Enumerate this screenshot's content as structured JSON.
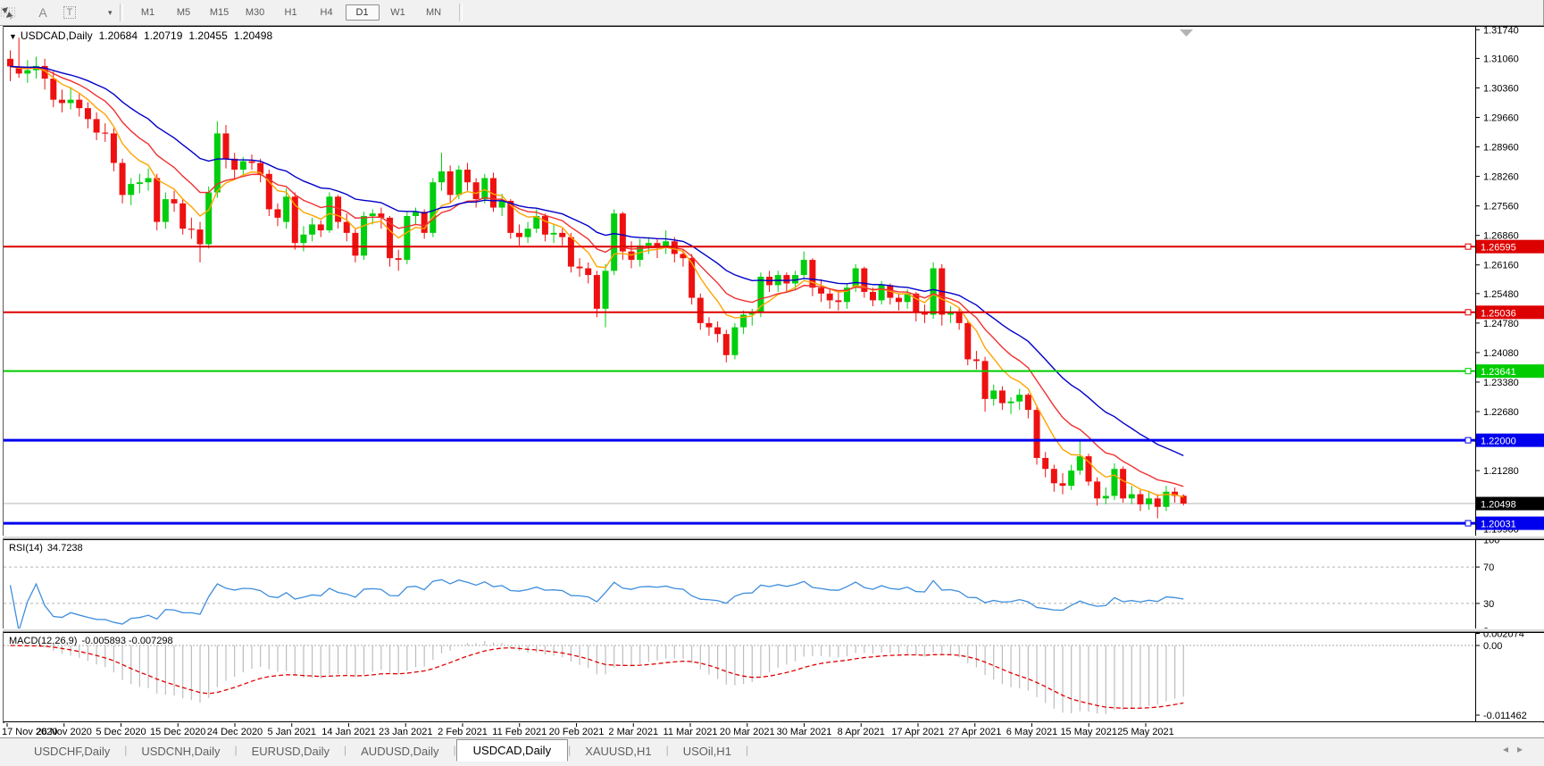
{
  "toolbar": {
    "icons": [
      {
        "name": "indicator-list-grid-icon"
      },
      {
        "name": "font-a-icon",
        "glyph": "A"
      },
      {
        "name": "text-label-icon",
        "glyph": "T"
      },
      {
        "name": "cursor-arrows-icon"
      },
      {
        "name": "dropdown-caret-icon",
        "glyph": "▾"
      }
    ],
    "timeframes": [
      "M1",
      "M5",
      "M15",
      "M30",
      "H1",
      "H4",
      "D1",
      "W1",
      "MN"
    ],
    "active_timeframe": "D1"
  },
  "chart_header": {
    "collapse_icon": "▼",
    "title": "USDCAD,Daily",
    "quote": {
      "open": "1.20684",
      "high": "1.20719",
      "low": "1.20455",
      "close": "1.20498"
    }
  },
  "price_axis": {
    "ticks": [
      "1.31740",
      "1.31060",
      "1.30360",
      "1.29660",
      "1.28960",
      "1.28260",
      "1.27560",
      "1.26860",
      "1.26160",
      "1.25480",
      "1.24780",
      "1.24080",
      "1.23380",
      "1.22680",
      "1.21280",
      "1.20580",
      "1.19900"
    ]
  },
  "chart_data": {
    "type": "candlestick",
    "symbol": "USDCAD",
    "period": "Daily",
    "axis_range": {
      "top_price": 1.3181,
      "bottom_price": 1.1974
    },
    "candle_colors": {
      "up": "#00CE0E",
      "down": "#EE1111"
    },
    "candles": [
      [
        1.3105,
        1.3125,
        1.3052,
        1.3087
      ],
      [
        1.3087,
        1.3155,
        1.306,
        1.307
      ],
      [
        1.307,
        1.3102,
        1.3048,
        1.3078
      ],
      [
        1.3078,
        1.311,
        1.3058,
        1.3088
      ],
      [
        1.3088,
        1.3105,
        1.3032,
        1.3058
      ],
      [
        1.3058,
        1.3075,
        1.299,
        1.3008
      ],
      [
        1.3008,
        1.3032,
        1.2978,
        1.3
      ],
      [
        1.3,
        1.3038,
        1.2985,
        1.3008
      ],
      [
        1.3008,
        1.3022,
        1.2968,
        1.2988
      ],
      [
        1.2988,
        1.3002,
        1.294,
        1.2962
      ],
      [
        1.2962,
        1.2978,
        1.2912,
        1.293
      ],
      [
        1.293,
        1.2952,
        1.2908,
        1.2928
      ],
      [
        1.2928,
        1.294,
        1.2838,
        1.2858
      ],
      [
        1.2858,
        1.2868,
        1.2762,
        1.2782
      ],
      [
        1.2782,
        1.2822,
        1.2758,
        1.2808
      ],
      [
        1.2808,
        1.2832,
        1.2786,
        1.2812
      ],
      [
        1.2812,
        1.2845,
        1.2792,
        1.2822
      ],
      [
        1.2822,
        1.2832,
        1.2698,
        1.2718
      ],
      [
        1.2718,
        1.2788,
        1.2702,
        1.2772
      ],
      [
        1.2772,
        1.2792,
        1.2742,
        1.2762
      ],
      [
        1.2762,
        1.2772,
        1.2688,
        1.2702
      ],
      [
        1.2702,
        1.2728,
        1.2678,
        1.27
      ],
      [
        1.27,
        1.2718,
        1.2622,
        1.2665
      ],
      [
        1.2665,
        1.2802,
        1.2655,
        1.2788
      ],
      [
        1.2788,
        1.2957,
        1.2775,
        1.2928
      ],
      [
        1.2928,
        1.2948,
        1.2845,
        1.2868
      ],
      [
        1.2868,
        1.2882,
        1.2818,
        1.2842
      ],
      [
        1.2842,
        1.2872,
        1.2828,
        1.2862
      ],
      [
        1.2862,
        1.2878,
        1.2842,
        1.2858
      ],
      [
        1.2858,
        1.2868,
        1.2812,
        1.2832
      ],
      [
        1.2832,
        1.2842,
        1.2732,
        1.2748
      ],
      [
        1.2748,
        1.2762,
        1.2708,
        1.2728
      ],
      [
        1.2718,
        1.2798,
        1.2702,
        1.2778
      ],
      [
        1.2778,
        1.2788,
        1.2652,
        1.2668
      ],
      [
        1.2668,
        1.2708,
        1.2648,
        1.2688
      ],
      [
        1.2688,
        1.2728,
        1.2672,
        1.2712
      ],
      [
        1.2712,
        1.2722,
        1.2682,
        1.2698
      ],
      [
        1.2698,
        1.2788,
        1.2692,
        1.2778
      ],
      [
        1.2778,
        1.2782,
        1.2702,
        1.2718
      ],
      [
        1.2718,
        1.2738,
        1.2672,
        1.2692
      ],
      [
        1.2692,
        1.2702,
        1.2622,
        1.2638
      ],
      [
        1.2638,
        1.2742,
        1.2628,
        1.2732
      ],
      [
        1.2732,
        1.2748,
        1.2712,
        1.2738
      ],
      [
        1.2738,
        1.2752,
        1.2702,
        1.2728
      ],
      [
        1.2728,
        1.2732,
        1.2612,
        1.2632
      ],
      [
        1.2632,
        1.2652,
        1.2602,
        1.2628
      ],
      [
        1.2628,
        1.2742,
        1.2618,
        1.2732
      ],
      [
        1.2732,
        1.2752,
        1.2712,
        1.2742
      ],
      [
        1.2742,
        1.2748,
        1.2678,
        1.2692
      ],
      [
        1.2692,
        1.2822,
        1.2682,
        1.2812
      ],
      [
        1.2812,
        1.2882,
        1.2792,
        1.2838
      ],
      [
        1.2838,
        1.2852,
        1.2762,
        1.2782
      ],
      [
        1.2782,
        1.2852,
        1.2772,
        1.2842
      ],
      [
        1.2842,
        1.2858,
        1.2792,
        1.2812
      ],
      [
        1.2812,
        1.2822,
        1.2752,
        1.2772
      ],
      [
        1.2772,
        1.2832,
        1.2762,
        1.2822
      ],
      [
        1.2822,
        1.2835,
        1.2742,
        1.2752
      ],
      [
        1.2752,
        1.2785,
        1.2732,
        1.2768
      ],
      [
        1.2768,
        1.2772,
        1.2678,
        1.2692
      ],
      [
        1.2692,
        1.2712,
        1.2662,
        1.2682
      ],
      [
        1.2682,
        1.2718,
        1.2668,
        1.2702
      ],
      [
        1.2702,
        1.2748,
        1.2692,
        1.2732
      ],
      [
        1.2732,
        1.2738,
        1.2672,
        1.2688
      ],
      [
        1.2688,
        1.2712,
        1.2668,
        1.2692
      ],
      [
        1.2692,
        1.2702,
        1.2662,
        1.2682
      ],
      [
        1.2682,
        1.2692,
        1.2598,
        1.2612
      ],
      [
        1.2612,
        1.2632,
        1.2588,
        1.2608
      ],
      [
        1.2608,
        1.2622,
        1.2572,
        1.2592
      ],
      [
        1.2592,
        1.2602,
        1.2492,
        1.2512
      ],
      [
        1.2512,
        1.2618,
        1.2468,
        1.2602
      ],
      [
        1.2602,
        1.2748,
        1.2592,
        1.2738
      ],
      [
        1.2738,
        1.2742,
        1.2628,
        1.2648
      ],
      [
        1.2648,
        1.2672,
        1.2608,
        1.2628
      ],
      [
        1.2628,
        1.2678,
        1.2612,
        1.2662
      ],
      [
        1.2662,
        1.2682,
        1.2642,
        1.2668
      ],
      [
        1.2668,
        1.2678,
        1.2632,
        1.2658
      ],
      [
        1.2658,
        1.2698,
        1.2642,
        1.2672
      ],
      [
        1.2672,
        1.2682,
        1.2622,
        1.2642
      ],
      [
        1.2642,
        1.2652,
        1.2612,
        1.2632
      ],
      [
        1.2632,
        1.2642,
        1.2522,
        1.2538
      ],
      [
        1.2538,
        1.2548,
        1.2462,
        1.2478
      ],
      [
        1.2478,
        1.2492,
        1.2448,
        1.2468
      ],
      [
        1.2468,
        1.2482,
        1.2432,
        1.2452
      ],
      [
        1.2452,
        1.2462,
        1.2385,
        1.2402
      ],
      [
        1.2402,
        1.2478,
        1.2392,
        1.2468
      ],
      [
        1.2468,
        1.2508,
        1.2452,
        1.2498
      ],
      [
        1.2498,
        1.2512,
        1.2472,
        1.2502
      ],
      [
        1.2502,
        1.2598,
        1.2492,
        1.2588
      ],
      [
        1.2588,
        1.2602,
        1.2552,
        1.2568
      ],
      [
        1.2568,
        1.2602,
        1.2552,
        1.2592
      ],
      [
        1.2592,
        1.2598,
        1.2552,
        1.2572
      ],
      [
        1.2572,
        1.2602,
        1.2558,
        1.2592
      ],
      [
        1.2592,
        1.2648,
        1.2582,
        1.2628
      ],
      [
        1.2628,
        1.2632,
        1.2542,
        1.2562
      ],
      [
        1.2562,
        1.2582,
        1.2528,
        1.2548
      ],
      [
        1.2548,
        1.2558,
        1.2512,
        1.2532
      ],
      [
        1.2532,
        1.2552,
        1.2508,
        1.2528
      ],
      [
        1.2528,
        1.2572,
        1.2512,
        1.2562
      ],
      [
        1.2562,
        1.2618,
        1.2552,
        1.2608
      ],
      [
        1.2608,
        1.2612,
        1.2538,
        1.2552
      ],
      [
        1.2552,
        1.2562,
        1.2518,
        1.2532
      ],
      [
        1.2532,
        1.2578,
        1.2522,
        1.2568
      ],
      [
        1.2568,
        1.2572,
        1.2522,
        1.2538
      ],
      [
        1.2538,
        1.2548,
        1.2508,
        1.2528
      ],
      [
        1.2528,
        1.2558,
        1.2512,
        1.2548
      ],
      [
        1.2548,
        1.2552,
        1.2482,
        1.2502
      ],
      [
        1.2502,
        1.2522,
        1.2478,
        1.2498
      ],
      [
        1.2498,
        1.2622,
        1.2488,
        1.2608
      ],
      [
        1.2608,
        1.2618,
        1.2472,
        1.2498
      ],
      [
        1.2498,
        1.2518,
        1.2478,
        1.2502
      ],
      [
        1.2502,
        1.2512,
        1.2462,
        1.2478
      ],
      [
        1.2478,
        1.2482,
        1.2378,
        1.2392
      ],
      [
        1.2392,
        1.2412,
        1.2368,
        1.2388
      ],
      [
        1.2388,
        1.2398,
        1.2268,
        1.2298
      ],
      [
        1.2298,
        1.2332,
        1.2282,
        1.2318
      ],
      [
        1.2318,
        1.2328,
        1.2272,
        1.2288
      ],
      [
        1.2288,
        1.2302,
        1.2262,
        1.2292
      ],
      [
        1.2292,
        1.2322,
        1.2272,
        1.2308
      ],
      [
        1.2308,
        1.2312,
        1.2252,
        1.2272
      ],
      [
        1.2272,
        1.2282,
        1.2142,
        1.2158
      ],
      [
        1.2158,
        1.2172,
        1.2112,
        1.2132
      ],
      [
        1.2132,
        1.2142,
        1.2078,
        1.2098
      ],
      [
        1.2098,
        1.2122,
        1.2072,
        1.2092
      ],
      [
        1.2092,
        1.2142,
        1.2082,
        1.2128
      ],
      [
        1.2128,
        1.2202,
        1.2118,
        1.2162
      ],
      [
        1.2162,
        1.2168,
        1.2092,
        1.2102
      ],
      [
        1.2102,
        1.2112,
        1.2045,
        1.2062
      ],
      [
        1.2062,
        1.2088,
        1.2048,
        1.2068
      ],
      [
        1.2068,
        1.2145,
        1.2058,
        1.2132
      ],
      [
        1.2132,
        1.2138,
        1.2052,
        1.2062
      ],
      [
        1.2062,
        1.2092,
        1.2048,
        1.2072
      ],
      [
        1.2072,
        1.2082,
        1.2032,
        1.2048
      ],
      [
        1.2048,
        1.2078,
        1.2035,
        1.2062
      ],
      [
        1.2062,
        1.2072,
        1.2015,
        1.2042
      ],
      [
        1.2042,
        1.2092,
        1.2032,
        1.2078
      ],
      [
        1.2078,
        1.2088,
        1.2052,
        1.2068
      ],
      [
        1.20684,
        1.20719,
        1.20455,
        1.20498
      ]
    ],
    "moving_averages": [
      {
        "name": "fast-ma",
        "period": 7,
        "color": "#FFA400"
      },
      {
        "name": "medium-ma",
        "period": 13,
        "color": "#F03030"
      },
      {
        "name": "slow-ma",
        "period": 25,
        "color": "#0000C8"
      }
    ],
    "horizontal_lines": [
      {
        "price": 1.26595,
        "label": "1.26595",
        "color": "#DD0000",
        "width": 2
      },
      {
        "price": 1.25036,
        "label": "1.25036",
        "color": "#DD0000",
        "width": 2
      },
      {
        "price": 1.23641,
        "label": "1.23641",
        "color": "#00CC00",
        "width": 2
      },
      {
        "price": 1.22,
        "label": "1.22000",
        "color": "#0000EE",
        "width": 3
      },
      {
        "price": 1.20031,
        "label": "1.20031",
        "color": "#0000EE",
        "width": 3
      }
    ],
    "current_price": {
      "price": 1.20498,
      "label": "1.20498",
      "badge_color": "#000000",
      "line_color": "#b4b4b4"
    },
    "date_ticks": [
      "17 Nov 2020",
      "26 Nov 2020",
      "5 Dec 2020",
      "15 Dec 2020",
      "24 Dec 2020",
      "5 Jan 2021",
      "14 Jan 2021",
      "23 Jan 2021",
      "2 Feb 2021",
      "11 Feb 2021",
      "20 Feb 2021",
      "2 Mar 2021",
      "11 Mar 2021",
      "20 Mar 2021",
      "30 Mar 2021",
      "8 Apr 2021",
      "17 Apr 2021",
      "27 Apr 2021",
      "6 May 2021",
      "15 May 2021",
      "25 May 2021"
    ],
    "rsi": {
      "label": "RSI(14)",
      "value_label": "34.7238",
      "period": 14,
      "color": "#3E8EDE",
      "levels": [
        {
          "v": 100,
          "label": "100",
          "dashed": false
        },
        {
          "v": 70,
          "label": "70",
          "dashed": true
        },
        {
          "v": 30,
          "label": "30",
          "dashed": true
        },
        {
          "v": 0,
          "label": "0",
          "dashed": false
        }
      ]
    },
    "macd": {
      "label": "MACD(12,26,9)",
      "values_label": "-0.005893 -0.007298",
      "fast": 12,
      "slow": 26,
      "signal": 9,
      "hist_color": "#bdbdbd",
      "signal_color": "#E00000",
      "axis": [
        {
          "v": 0.002074,
          "label": "0.002074"
        },
        {
          "v": 0,
          "label": "0.00"
        },
        {
          "v": -0.011462,
          "label": "-0.011462"
        }
      ]
    }
  },
  "tabs": {
    "items": [
      "USDCHF,Daily",
      "USDCNH,Daily",
      "EURUSD,Daily",
      "AUDUSD,Daily",
      "USDCAD,Daily",
      "XAUUSD,H1",
      "USOil,H1"
    ],
    "active": "USDCAD,Daily",
    "scroll_left": "◂",
    "scroll_right": "▸"
  }
}
